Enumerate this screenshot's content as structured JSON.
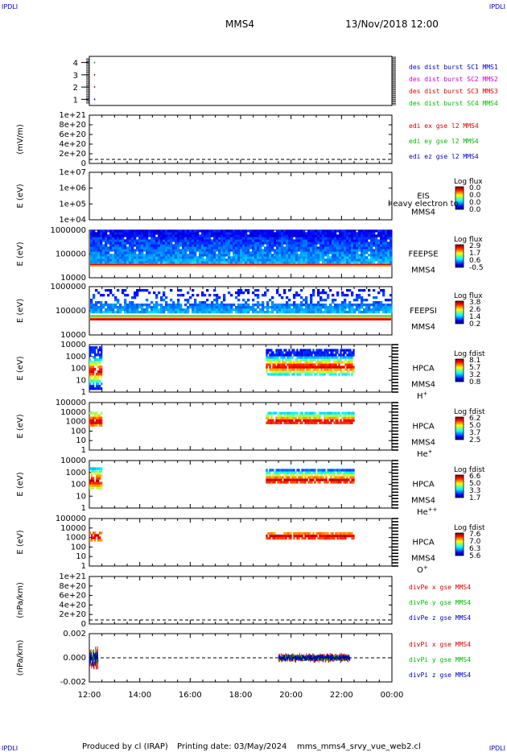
{
  "header": {
    "corner_tl": "IPDLI",
    "corner_tr": "IPDLI",
    "corner_bl": "IPDLI",
    "corner_br": "IPDLI",
    "title": "MMS4",
    "datetime": "13/Nov/2018 12:00"
  },
  "footer": {
    "produced_by": "Produced by cl (IRAP)",
    "printing_date": "Printing date: 03/May/2024",
    "script_name": "mms_mms4_srvy_vue_web2.cl"
  },
  "colors": {
    "black": "#000000",
    "magenta": "#cc00cc",
    "red": "#dd0000",
    "green": "#00bb00",
    "blue": "#0000cc"
  },
  "chart_data": [
    {
      "id": "burst",
      "type": "scatter",
      "yticks": [
        "4",
        "3",
        "2",
        "1"
      ],
      "ylim": [
        0.5,
        4.5
      ],
      "ylabel": "",
      "legend": [
        {
          "name": "des dist burst SC1 MMS1",
          "color": "#0000cc"
        },
        {
          "name": "des dist burst SC2 MMS2",
          "color": "#cc00cc"
        },
        {
          "name": "des dist burst SC3 MMS3",
          "color": "#dd0000"
        },
        {
          "name": "des dist burst SC4 MMS4",
          "color": "#00bb00"
        }
      ],
      "series": [
        {
          "name": "des dist burst SC1 MMS1",
          "x": [
            12.2
          ],
          "y": [
            1
          ]
        },
        {
          "name": "des dist burst SC2 MMS2",
          "x": [
            12.2
          ],
          "y": [
            2
          ]
        },
        {
          "name": "des dist burst SC3 MMS3",
          "x": [
            12.2
          ],
          "y": [
            3
          ]
        },
        {
          "name": "des dist burst SC4 MMS4",
          "x": [
            12.2
          ],
          "y": [
            4
          ]
        }
      ]
    },
    {
      "id": "edi",
      "type": "line",
      "ylabel": "(mV/m)",
      "yticks": [
        "1e+21",
        "8e+20",
        "6e+20",
        "4e+20",
        "2e+20",
        "0"
      ],
      "ylim": [
        0,
        1e+21
      ],
      "legend": [
        {
          "name": "edi ex gse l2 MMS4",
          "color": "#dd0000"
        },
        {
          "name": "edi ey gse l2 MMS4",
          "color": "#00bb00"
        },
        {
          "name": "edi ez gse l2 MMS4",
          "color": "#0000cc"
        }
      ]
    },
    {
      "id": "eis",
      "type": "heatmap",
      "ylabel": "E (eV)",
      "yticks": [
        "1e+07",
        "1e+06",
        "1e+05",
        "1e+04"
      ],
      "ylim": [
        10000,
        10000000
      ],
      "log_y": true,
      "right_label": "EIS",
      "right_sub": "MMS4",
      "overlay_text": "heavy electron to",
      "cbar_title": "Log flux",
      "cbar_ticks": [
        "0.0",
        "0.0",
        "0.0",
        "0.0"
      ]
    },
    {
      "id": "feepse",
      "type": "heatmap",
      "ylabel": "E (eV)",
      "yticks": [
        "1000000",
        "100000",
        "10000"
      ],
      "ylim": [
        10000,
        1000000
      ],
      "log_y": true,
      "right_label": "FEEPSE",
      "right_sub": "MMS4",
      "cbar_title": "Log flux",
      "cbar_ticks": [
        "2.9",
        "1.7",
        "0.6",
        "-0.5"
      ]
    },
    {
      "id": "feepsi",
      "type": "heatmap",
      "ylabel": "E (eV)",
      "yticks": [
        "1000000",
        "100000",
        "10000"
      ],
      "ylim": [
        10000,
        1000000
      ],
      "log_y": true,
      "right_label": "FEEPSI",
      "right_sub": "MMS4",
      "cbar_title": "Log flux",
      "cbar_ticks": [
        "3.8",
        "2.6",
        "1.4",
        "0.2"
      ]
    },
    {
      "id": "hpca_h",
      "type": "heatmap",
      "ylabel": "E (eV)",
      "yticks": [
        "10000",
        "1000",
        "100",
        "10",
        "1"
      ],
      "ylim": [
        1,
        30000
      ],
      "log_y": true,
      "right_label": "HPCA",
      "right_sub": "MMS4",
      "species": "H",
      "species_sup": "+",
      "cbar_title": "Log fdist",
      "cbar_ticks": [
        "8.1",
        "5.7",
        "3.2",
        "0.8"
      ]
    },
    {
      "id": "hpca_he",
      "type": "heatmap",
      "ylabel": "E (eV)",
      "yticks": [
        "100000",
        "10000",
        "1000",
        "100",
        "10",
        "1"
      ],
      "ylim": [
        1,
        100000
      ],
      "log_y": true,
      "right_label": "HPCA",
      "right_sub": "MMS4",
      "species": "He",
      "species_sup": "+",
      "cbar_title": "Log fdist",
      "cbar_ticks": [
        "6.2",
        "5.0",
        "3.7",
        "2.5"
      ]
    },
    {
      "id": "hpca_he2",
      "type": "heatmap",
      "ylabel": "E (eV)",
      "yticks": [
        "10000",
        "1000",
        "100",
        "10",
        "1"
      ],
      "ylim": [
        1,
        30000
      ],
      "log_y": true,
      "right_label": "HPCA",
      "right_sub": "MMS4",
      "species": "He",
      "species_sup": "++",
      "cbar_title": "Log fdist",
      "cbar_ticks": [
        "6.6",
        "5.0",
        "3.3",
        "1.7"
      ]
    },
    {
      "id": "hpca_o",
      "type": "heatmap",
      "ylabel": "E (eV)",
      "yticks": [
        "100000",
        "10000",
        "1000",
        "100",
        "10",
        "1"
      ],
      "ylim": [
        1,
        100000
      ],
      "log_y": true,
      "right_label": "HPCA",
      "right_sub": "MMS4",
      "species": "O",
      "species_sup": "+",
      "cbar_title": "Log fdist",
      "cbar_ticks": [
        "7.6",
        "7.0",
        "6.3",
        "5.6"
      ]
    },
    {
      "id": "divpe",
      "type": "line",
      "ylabel": "(nPa/km)",
      "yticks": [
        "1e+21",
        "8e+20",
        "6e+20",
        "4e+20",
        "2e+20",
        "0"
      ],
      "ylim": [
        0,
        1e+21
      ],
      "legend": [
        {
          "name": "divPe x gse MMS4",
          "color": "#dd0000"
        },
        {
          "name": "divPe y gse MMS4",
          "color": "#00bb00"
        },
        {
          "name": "divPe z gse MMS4",
          "color": "#0000cc"
        }
      ]
    },
    {
      "id": "divpi",
      "type": "line",
      "ylabel": "(nPa/km)",
      "yticks": [
        "0.002",
        "0.000",
        "-0.002"
      ],
      "ylim": [
        -0.0035,
        0.0035
      ],
      "legend": [
        {
          "name": "divPi x gse MMS4",
          "color": "#dd0000"
        },
        {
          "name": "divPi y gse MMS4",
          "color": "#00bb00"
        },
        {
          "name": "divPi z gse MMS4",
          "color": "#0000cc"
        }
      ]
    }
  ],
  "time_axis": {
    "ticks": [
      "12:00",
      "14:00",
      "16:00",
      "18:00",
      "20:00",
      "22:00",
      "00:00"
    ],
    "range_hours": [
      12,
      24
    ]
  }
}
